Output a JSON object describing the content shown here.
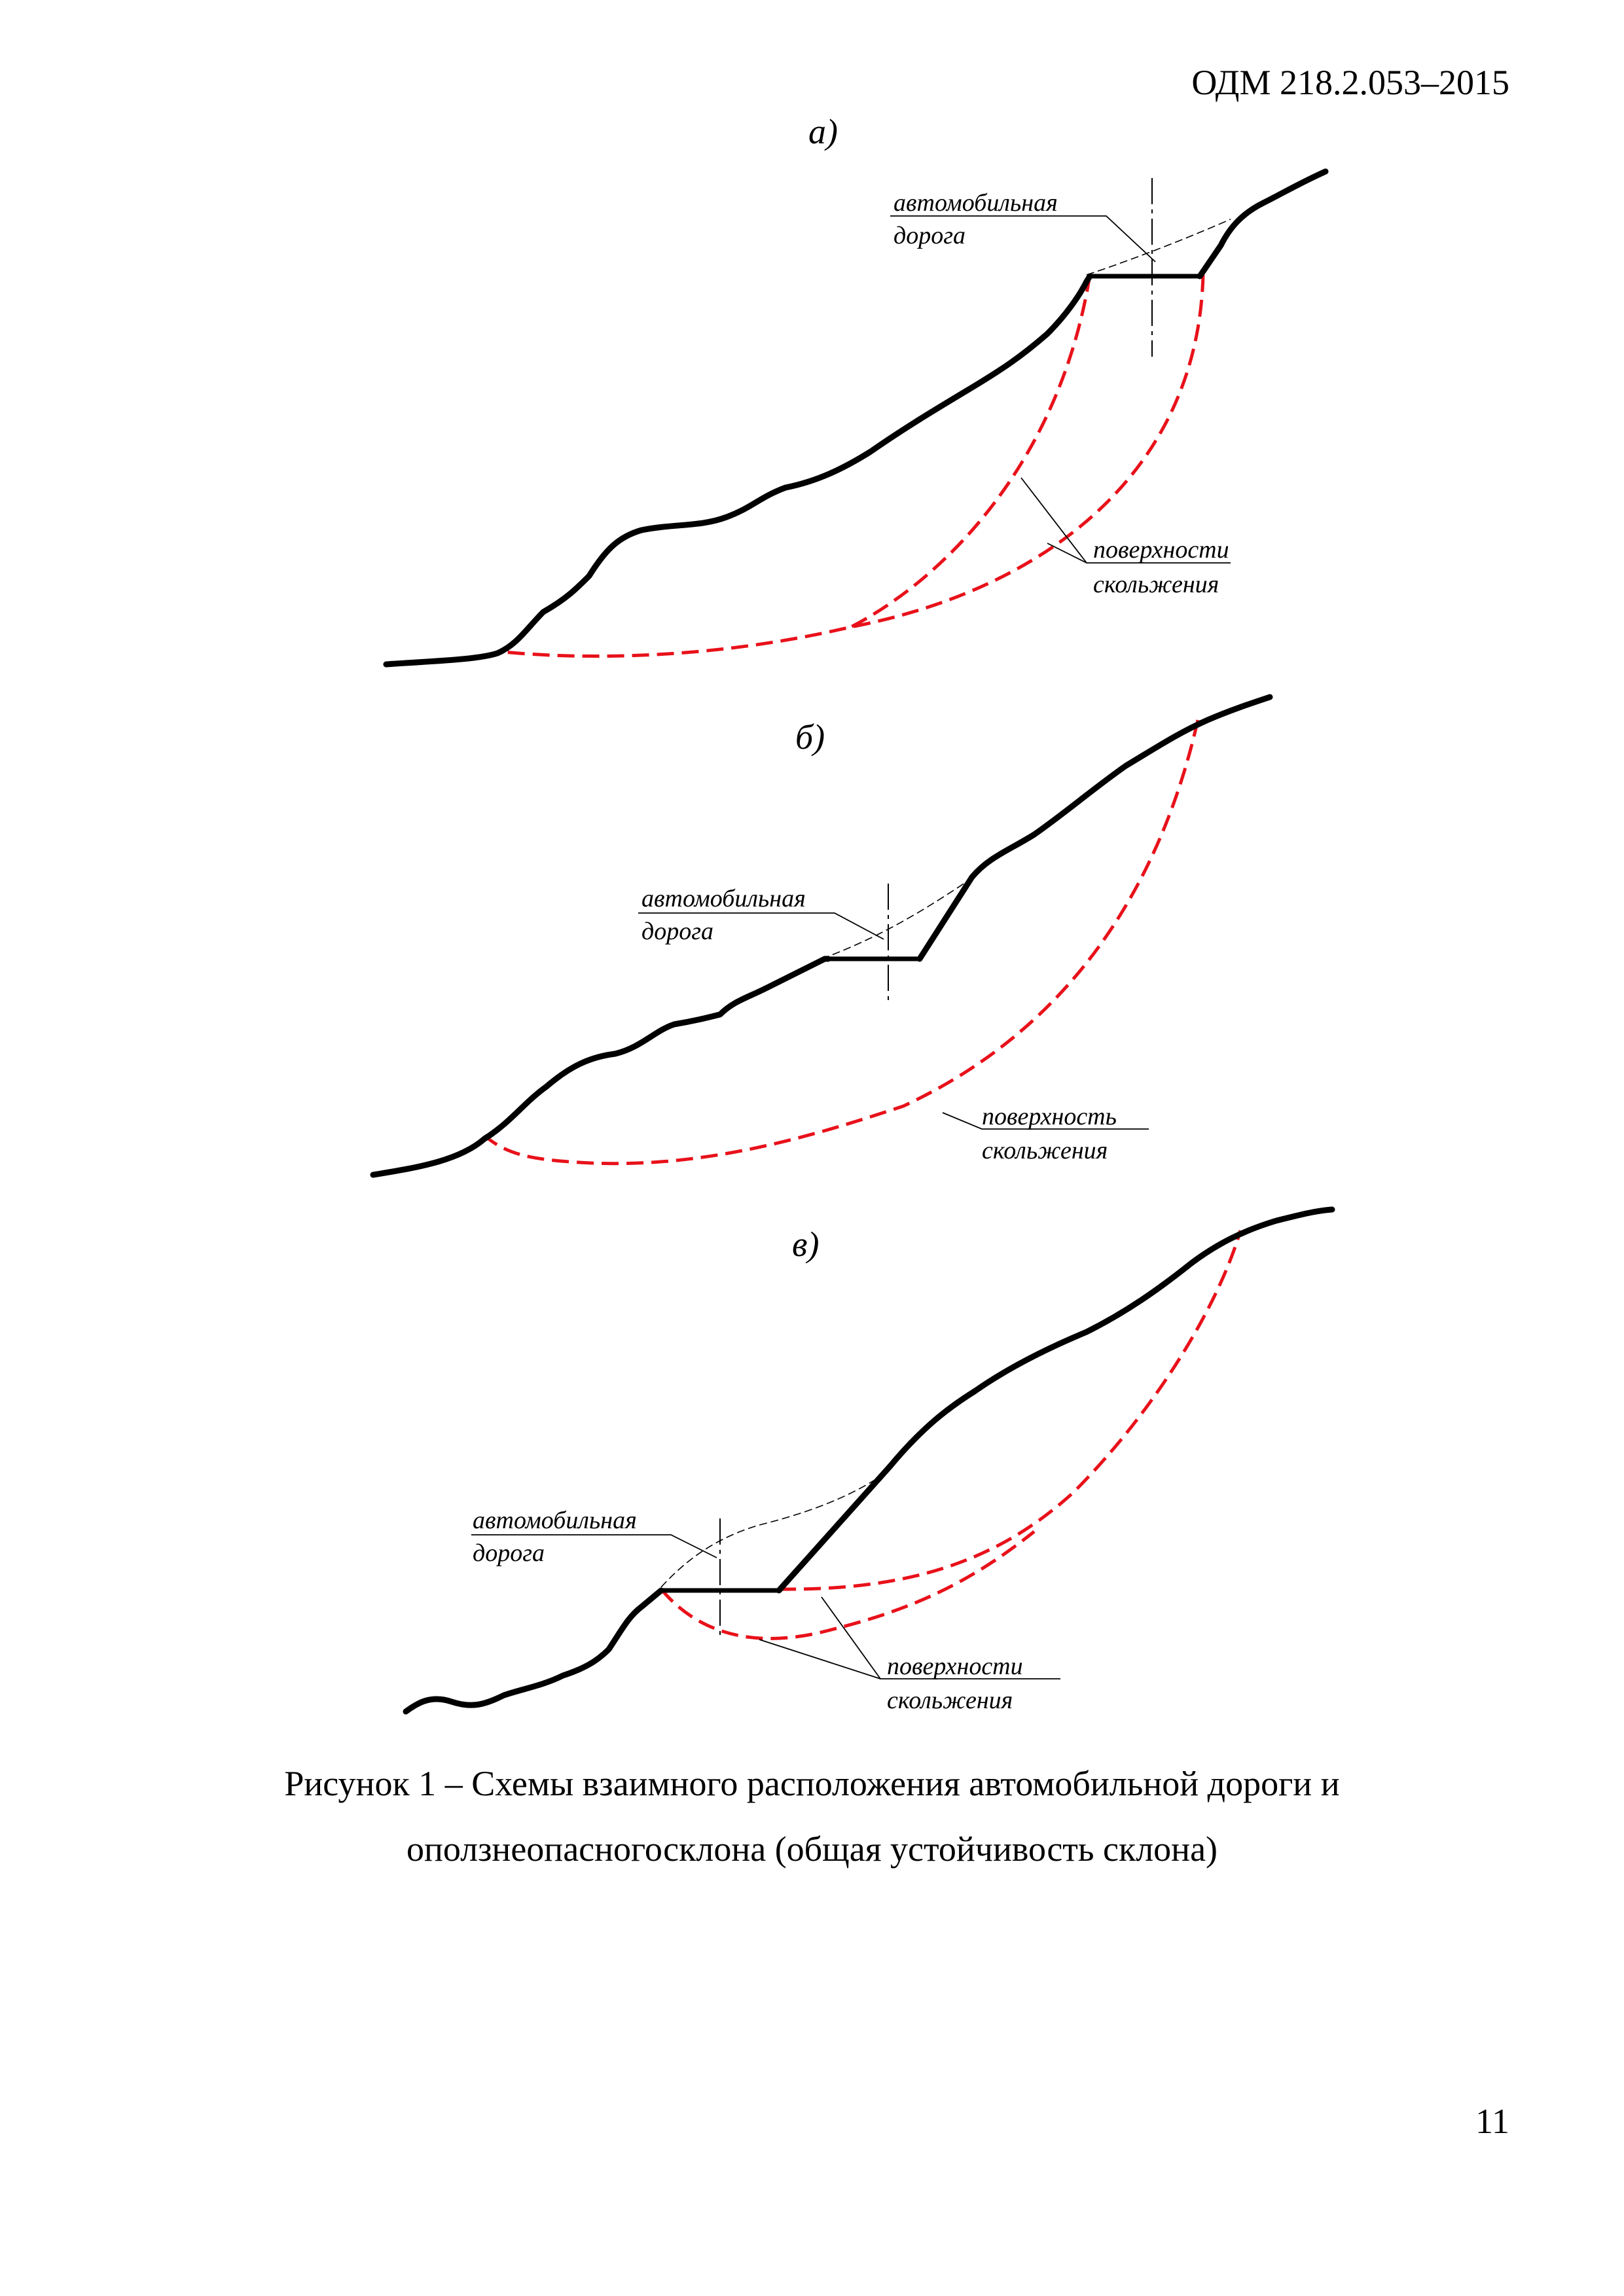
{
  "header": {
    "doc_code": "ОДМ 218.2.053–2015"
  },
  "panels": [
    {
      "letter": "а)",
      "road_label_1": "автомобильная",
      "road_label_2": "дорога",
      "surface_label_1": "поверхности",
      "surface_label_2": "скольжения"
    },
    {
      "letter": "б)",
      "road_label_1": "автомобильная",
      "road_label_2": "дорога",
      "surface_label_1": "поверхность",
      "surface_label_2": "скольжения"
    },
    {
      "letter": "в)",
      "road_label_1": "автомобильная",
      "road_label_2": "дорога",
      "surface_label_1": "поверхности",
      "surface_label_2": "скольжения"
    }
  ],
  "caption": {
    "line1": "Рисунок 1 – Схемы взаимного расположения автомобильной дороги и",
    "line2": "оползнеопасногосклона (общая устойчивость склона)"
  },
  "page_number": "11",
  "colors": {
    "slip_surface": "#e8111a",
    "ground": "#000000"
  }
}
